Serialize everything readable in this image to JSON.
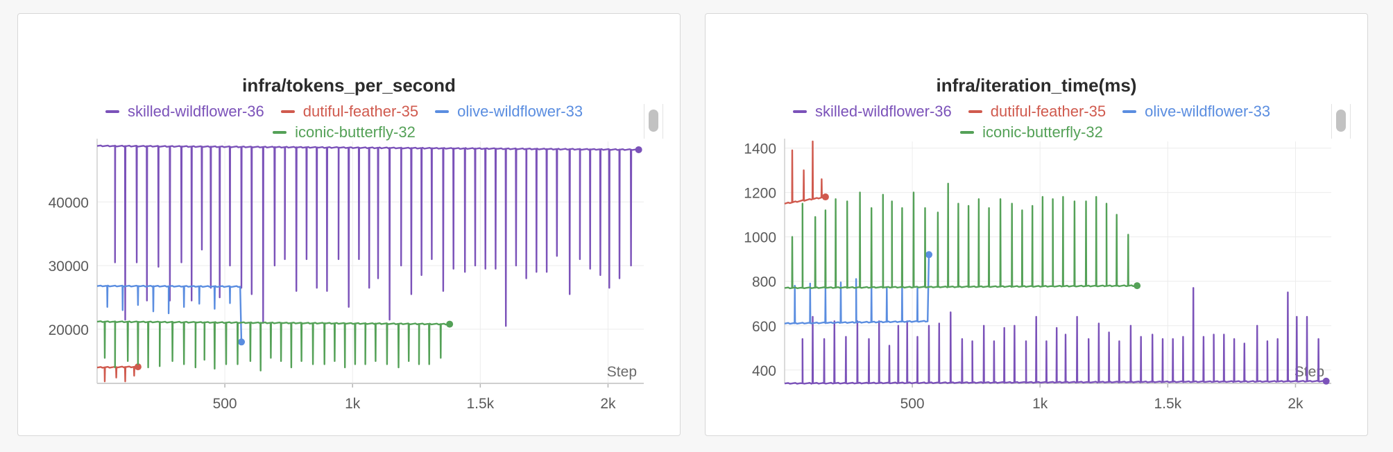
{
  "colors": {
    "skilled-wildflower-36": "#7b52b9",
    "dutiful-feather-35": "#d05a4e",
    "olive-wildflower-33": "#5a8de0",
    "iconic-butterfly-32": "#54a157"
  },
  "chart_data": [
    {
      "type": "line",
      "title": "infra/tokens_per_second",
      "xlabel": "Step",
      "ylabel": "",
      "xlim": [
        0,
        2140
      ],
      "ylim": [
        11500,
        49500
      ],
      "x_ticks": [
        500,
        1000,
        1500,
        2000
      ],
      "x_tick_labels": [
        "500",
        "1k",
        "1.5k",
        "2k"
      ],
      "y_ticks": [
        20000,
        30000,
        40000
      ],
      "y_tick_labels": [
        "20000",
        "30000",
        "40000"
      ],
      "grid": true,
      "legend": [
        "skilled-wildflower-36",
        "dutiful-feather-35",
        "olive-wildflower-33",
        "iconic-butterfly-32"
      ],
      "series": [
        {
          "name": "skilled-wildflower-36",
          "x_start": 0,
          "x_end": 2120,
          "baseline_start": 48800,
          "baseline_end": 48200,
          "dip_steps": [
            70,
            110,
            155,
            195,
            240,
            285,
            330,
            370,
            410,
            445,
            480,
            520,
            565,
            605,
            650,
            695,
            735,
            780,
            820,
            860,
            900,
            945,
            985,
            1025,
            1065,
            1100,
            1145,
            1190,
            1230,
            1270,
            1310,
            1355,
            1395,
            1440,
            1480,
            1520,
            1560,
            1600,
            1640,
            1680,
            1720,
            1760,
            1800,
            1850,
            1890,
            1930,
            1970,
            2005,
            2045,
            2090
          ],
          "dip_values": [
            30500,
            21500,
            30500,
            24500,
            29800,
            24500,
            30500,
            24500,
            32500,
            26500,
            25000,
            30000,
            26500,
            25500,
            21000,
            30000,
            31000,
            26000,
            31000,
            26500,
            26000,
            31000,
            23500,
            31000,
            26500,
            28000,
            21500,
            30000,
            25500,
            28500,
            31000,
            26000,
            29500,
            29000,
            30000,
            29500,
            29500,
            20500,
            30000,
            28000,
            29000,
            29000,
            31500,
            25500,
            31000,
            29500,
            28500,
            26500,
            28000,
            30000
          ],
          "final_value": 48200
        },
        {
          "name": "dutiful-feather-35",
          "x_start": 0,
          "x_end": 160,
          "baseline_start": 14000,
          "baseline_end": 14100,
          "dip_steps": [
            30,
            75,
            110,
            145
          ],
          "dip_values": [
            11800,
            12400,
            11800,
            12700
          ],
          "final_value": 14100
        },
        {
          "name": "olive-wildflower-33",
          "x_start": 0,
          "x_end": 565,
          "baseline_start": 26800,
          "baseline_end": 26700,
          "dip_steps": [
            40,
            100,
            160,
            220,
            280,
            340,
            400,
            460,
            520
          ],
          "dip_values": [
            23500,
            23000,
            23800,
            22800,
            22500,
            23500,
            24000,
            23200,
            24100
          ],
          "drop_to": 18000,
          "final_value": 18000
        },
        {
          "name": "iconic-butterfly-32",
          "x_start": 0,
          "x_end": 1380,
          "baseline_start": 21200,
          "baseline_end": 20800,
          "dip_steps": [
            30,
            70,
            120,
            160,
            200,
            245,
            295,
            340,
            385,
            420,
            460,
            505,
            550,
            600,
            640,
            680,
            720,
            760,
            800,
            845,
            890,
            930,
            970,
            1010,
            1050,
            1090,
            1135,
            1180,
            1220,
            1260,
            1300,
            1345
          ],
          "dip_values": [
            15500,
            14000,
            15000,
            14500,
            14000,
            14200,
            15000,
            14500,
            14000,
            15200,
            13800,
            14500,
            14500,
            15000,
            13500,
            15500,
            15000,
            14000,
            15000,
            14500,
            14500,
            15000,
            14000,
            14500,
            14500,
            15000,
            14500,
            14000,
            15000,
            14500,
            14500,
            15500
          ],
          "final_value": 20800
        }
      ]
    },
    {
      "type": "line",
      "title": "infra/iteration_time(ms)",
      "xlabel": "Step",
      "ylabel": "",
      "xlim": [
        0,
        2140
      ],
      "ylim": [
        340,
        1430
      ],
      "x_ticks": [
        500,
        1000,
        1500,
        2000
      ],
      "x_tick_labels": [
        "500",
        "1k",
        "1.5k",
        "2k"
      ],
      "y_ticks": [
        400,
        600,
        800,
        1000,
        1200,
        1400
      ],
      "y_tick_labels": [
        "400",
        "600",
        "800",
        "1000",
        "1200",
        "1400"
      ],
      "grid": true,
      "legend": [
        "skilled-wildflower-36",
        "dutiful-feather-35",
        "olive-wildflower-33",
        "iconic-butterfly-32"
      ],
      "series": [
        {
          "name": "skilled-wildflower-36",
          "x_start": 0,
          "x_end": 2120,
          "baseline_start": 340,
          "baseline_end": 350,
          "spike_steps": [
            70,
            110,
            155,
            195,
            240,
            285,
            330,
            370,
            410,
            445,
            480,
            520,
            565,
            605,
            650,
            695,
            735,
            780,
            820,
            860,
            900,
            945,
            985,
            1025,
            1065,
            1100,
            1145,
            1190,
            1230,
            1270,
            1310,
            1355,
            1395,
            1440,
            1480,
            1520,
            1560,
            1600,
            1640,
            1680,
            1720,
            1760,
            1800,
            1850,
            1890,
            1930,
            1970,
            2005,
            2045,
            2090
          ],
          "spike_values": [
            540,
            640,
            540,
            620,
            550,
            620,
            540,
            620,
            510,
            600,
            620,
            550,
            600,
            610,
            660,
            540,
            530,
            600,
            530,
            590,
            600,
            530,
            640,
            530,
            590,
            560,
            640,
            540,
            610,
            570,
            530,
            600,
            550,
            560,
            540,
            540,
            550,
            770,
            550,
            560,
            560,
            540,
            520,
            600,
            530,
            540,
            750,
            640,
            640,
            540
          ],
          "final_value": 350
        },
        {
          "name": "dutiful-feather-35",
          "x_start": 0,
          "x_end": 160,
          "baseline_start": 1150,
          "baseline_end": 1180,
          "spike_steps": [
            30,
            75,
            110,
            145
          ],
          "spike_values": [
            1390,
            1300,
            1430,
            1260
          ],
          "final_value": 1180
        },
        {
          "name": "olive-wildflower-33",
          "x_start": 0,
          "x_end": 565,
          "baseline_start": 610,
          "baseline_end": 620,
          "spike_steps": [
            40,
            100,
            160,
            220,
            280,
            340,
            400,
            460,
            520
          ],
          "spike_values": [
            780,
            790,
            770,
            795,
            810,
            790,
            770,
            790,
            770
          ],
          "rise_to": 920,
          "final_value": 920
        },
        {
          "name": "iconic-butterfly-32",
          "x_start": 0,
          "x_end": 1380,
          "baseline_start": 770,
          "baseline_end": 780,
          "spike_steps": [
            30,
            70,
            120,
            160,
            200,
            245,
            295,
            340,
            385,
            420,
            460,
            505,
            550,
            600,
            640,
            680,
            720,
            760,
            800,
            845,
            890,
            930,
            970,
            1010,
            1050,
            1090,
            1135,
            1180,
            1220,
            1260,
            1300,
            1345
          ],
          "spike_values": [
            1000,
            1150,
            1090,
            1120,
            1170,
            1160,
            1200,
            1130,
            1190,
            1160,
            1130,
            1200,
            1130,
            1110,
            1240,
            1150,
            1140,
            1170,
            1130,
            1170,
            1150,
            1120,
            1140,
            1180,
            1170,
            1180,
            1160,
            1160,
            1180,
            1150,
            1100,
            1010
          ],
          "final_value": 780
        }
      ]
    }
  ]
}
